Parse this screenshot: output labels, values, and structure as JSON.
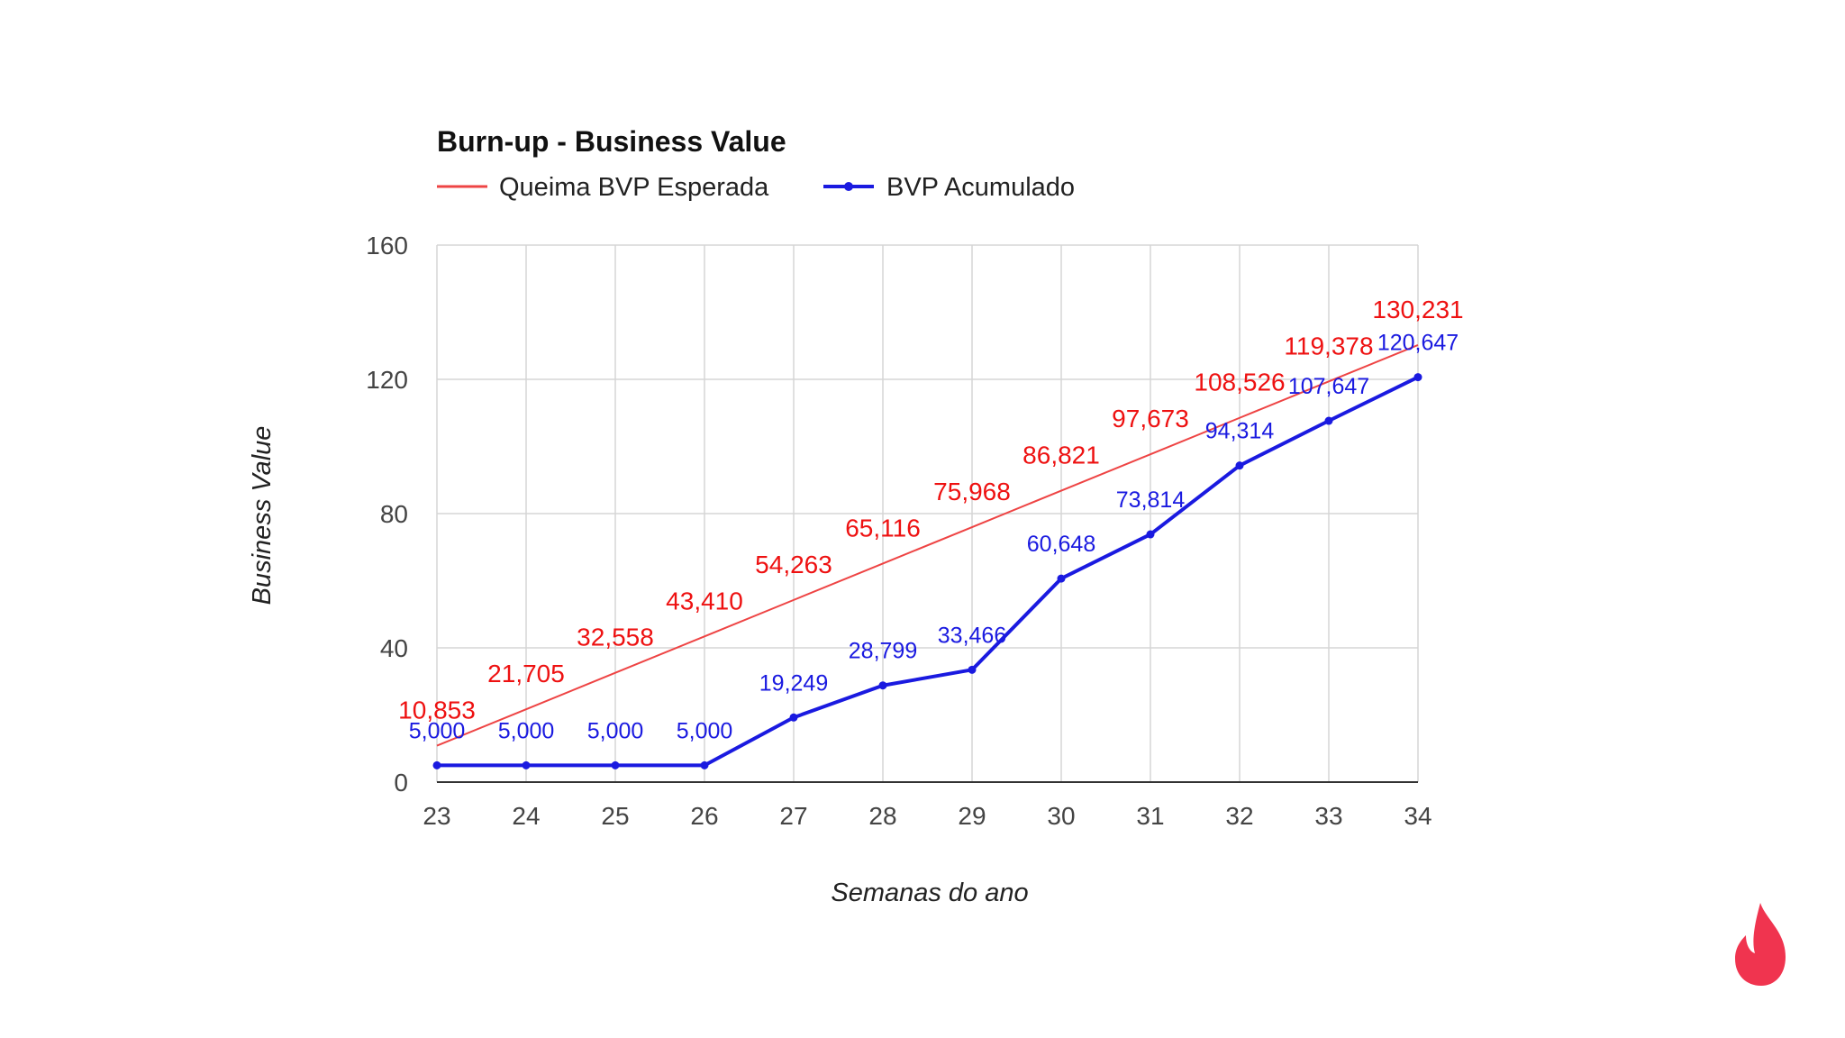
{
  "chart_data": {
    "type": "line",
    "title": "Burn-up - Business Value",
    "xlabel": "Semanas do ano",
    "ylabel": "Business Value",
    "ylim": [
      0,
      160
    ],
    "yticks": [
      "0",
      "40",
      "80",
      "120",
      "160"
    ],
    "x": [
      "23",
      "24",
      "25",
      "26",
      "27",
      "28",
      "29",
      "30",
      "31",
      "32",
      "33",
      "34"
    ],
    "grid": true,
    "legend_position": "top-left",
    "series": [
      {
        "name": "Queima BVP Esperada",
        "color": "#ee4444",
        "label_color": "#ee1111",
        "markers": false,
        "values": [
          10.853,
          21.705,
          32.558,
          43.41,
          54.263,
          65.116,
          75.968,
          86.821,
          97.673,
          108.526,
          119.378,
          130.231
        ],
        "labels": [
          "10,853",
          "21,705",
          "32,558",
          "43,410",
          "54,263",
          "65,116",
          "75,968",
          "86,821",
          "97,673",
          "108,526",
          "119,378",
          "130,231"
        ]
      },
      {
        "name": "BVP Acumulado",
        "color": "#1a1ae0",
        "label_color": "#1a1ae0",
        "markers": true,
        "values": [
          5.0,
          5.0,
          5.0,
          5.0,
          19.249,
          28.799,
          33.466,
          60.648,
          73.814,
          94.314,
          107.647,
          120.647
        ],
        "labels": [
          "5,000",
          "5,000",
          "5,000",
          "5,000",
          "19,249",
          "28,799",
          "33,466",
          "60,648",
          "73,814",
          "94,314",
          "107,647",
          "120,647"
        ]
      }
    ]
  },
  "logo": {
    "name": "flame-logo",
    "color": "#f0344f"
  }
}
